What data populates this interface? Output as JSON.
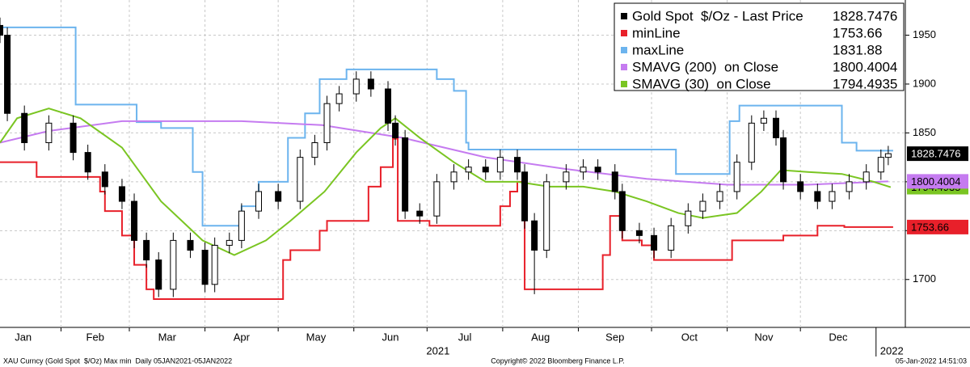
{
  "chart_data": {
    "type": "candlestick",
    "candles": {
      "name": "Gold Spot  $/Oz - Last Price",
      "color": "#000000",
      "x": [
        6,
        9,
        16,
        26,
        36,
        42,
        49,
        56,
        61,
        66,
        71,
        77,
        84,
        90,
        94,
        100,
        105,
        112,
        120,
        129,
        135,
        140,
        145,
        152,
        158,
        165,
        168,
        172,
        178,
        185,
        192,
        198,
        205,
        211,
        218,
        221,
        225,
        230,
        238,
        245,
        251,
        258,
        261,
        268,
        274,
        281,
        288,
        294,
        301,
        308,
        314,
        319,
        324,
        327,
        334,
        341,
        347,
        354,
        361,
        367,
        370
      ],
      "open": [
        1960,
        1950,
        1870,
        1840,
        1860,
        1830,
        1810,
        1795,
        1780,
        1740,
        1720,
        1690,
        1740,
        1730,
        1695,
        1735,
        1740,
        1770,
        1790,
        1780,
        1825,
        1840,
        1880,
        1890,
        1905,
        1895,
        1860,
        1845,
        1770,
        1765,
        1800,
        1810,
        1815,
        1810,
        1825,
        1810,
        1760,
        1730,
        1800,
        1810,
        1815,
        1810,
        1790,
        1750,
        1745,
        1730,
        1755,
        1770,
        1780,
        1790,
        1820,
        1860,
        1865,
        1845,
        1800,
        1790,
        1780,
        1790,
        1800,
        1810,
        1825
      ],
      "high": [
        1968,
        1958,
        1878,
        1868,
        1868,
        1838,
        1818,
        1803,
        1788,
        1748,
        1728,
        1748,
        1748,
        1738,
        1743,
        1748,
        1778,
        1798,
        1798,
        1833,
        1848,
        1888,
        1898,
        1913,
        1913,
        1903,
        1868,
        1853,
        1778,
        1808,
        1818,
        1823,
        1823,
        1833,
        1833,
        1818,
        1768,
        1808,
        1818,
        1823,
        1823,
        1818,
        1798,
        1758,
        1753,
        1763,
        1778,
        1788,
        1798,
        1828,
        1868,
        1873,
        1873,
        1853,
        1808,
        1798,
        1798,
        1808,
        1818,
        1833,
        1836.75
      ],
      "low": [
        1942,
        1862,
        1832,
        1832,
        1822,
        1802,
        1787,
        1772,
        1732,
        1712,
        1682,
        1682,
        1722,
        1687,
        1687,
        1727,
        1732,
        1762,
        1772,
        1772,
        1817,
        1832,
        1872,
        1882,
        1887,
        1852,
        1837,
        1762,
        1757,
        1757,
        1792,
        1802,
        1802,
        1802,
        1802,
        1752,
        1685,
        1722,
        1792,
        1802,
        1802,
        1782,
        1742,
        1737,
        1722,
        1722,
        1747,
        1762,
        1772,
        1782,
        1812,
        1852,
        1837,
        1792,
        1782,
        1772,
        1772,
        1782,
        1792,
        1802,
        1817
      ],
      "close": [
        1950,
        1870,
        1840,
        1860,
        1830,
        1810,
        1795,
        1780,
        1740,
        1720,
        1690,
        1740,
        1730,
        1695,
        1735,
        1740,
        1770,
        1790,
        1780,
        1825,
        1840,
        1880,
        1890,
        1905,
        1895,
        1860,
        1845,
        1770,
        1765,
        1800,
        1810,
        1815,
        1810,
        1825,
        1810,
        1760,
        1730,
        1800,
        1810,
        1815,
        1810,
        1790,
        1750,
        1745,
        1730,
        1755,
        1770,
        1780,
        1790,
        1820,
        1860,
        1865,
        1845,
        1800,
        1790,
        1780,
        1790,
        1800,
        1810,
        1825,
        1828.7476
      ]
    },
    "series": [
      {
        "name": "minLine",
        "color": "#e8202a",
        "style": "step",
        "x": [
          6,
          21,
          47,
          49,
          56,
          61,
          66,
          69,
          122,
          125,
          137,
          140,
          157,
          162,
          167,
          169,
          182,
          211,
          215,
          218,
          221,
          253,
          256,
          261,
          269,
          274,
          306,
          327,
          341,
          352,
          372
        ],
        "values": [
          1820,
          1805,
          1790,
          1770,
          1745,
          1715,
          1690,
          1680,
          1720,
          1730,
          1750,
          1760,
          1795,
          1815,
          1844,
          1760,
          1755,
          1775,
          1790,
          1800,
          1690,
          1725,
          1765,
          1740,
          1735,
          1720,
          1740,
          1745,
          1755,
          1753.66,
          1753.66
        ]
      },
      {
        "name": "maxLine",
        "color": "#6cb4ee",
        "style": "step",
        "x": [
          6,
          37,
          62,
          72,
          85,
          89,
          105,
          112,
          124,
          131,
          137,
          148,
          185,
          192,
          197,
          198,
          283,
          305,
          309,
          351,
          357,
          372
        ],
        "values": [
          1958,
          1879,
          1861,
          1855,
          1810,
          1755,
          1775,
          1800,
          1845,
          1870,
          1905,
          1915,
          1905,
          1893,
          1840,
          1833,
          1808,
          1862,
          1878,
          1840,
          1831.88,
          1831.88
        ]
      },
      {
        "name": "SMAVG (200)  on Close",
        "color": "#c57bf0",
        "style": "line",
        "x": [
          6,
          26,
          56,
          105,
          138,
          171,
          205,
          238,
          271,
          304,
          337,
          370
        ],
        "values": [
          1840,
          1852,
          1862,
          1862,
          1858,
          1845,
          1825,
          1813,
          1803,
          1797,
          1797,
          1800.4004
        ]
      },
      {
        "name": "SMAVG (30)  on Close",
        "color": "#7ac522",
        "style": "line",
        "x": [
          6,
          13,
          26,
          39,
          56,
          72,
          89,
          102,
          115,
          125,
          139,
          152,
          162,
          168,
          178,
          192,
          205,
          218,
          231,
          245,
          258,
          271,
          284,
          294,
          308,
          318,
          326,
          337,
          351,
          364,
          371
        ],
        "values": [
          1840,
          1865,
          1875,
          1865,
          1835,
          1780,
          1740,
          1725,
          1740,
          1760,
          1790,
          1830,
          1855,
          1865,
          1845,
          1820,
          1800,
          1800,
          1795,
          1795,
          1790,
          1780,
          1768,
          1763,
          1768,
          1790,
          1812,
          1810,
          1808,
          1800,
          1794.4935
        ]
      }
    ],
    "xlim": [
      6,
      377
    ],
    "xticks": [
      {
        "value": 0,
        "label": "Jan"
      },
      {
        "value": 31,
        "label": "Feb"
      },
      {
        "value": 59,
        "label": "Mar"
      },
      {
        "value": 90,
        "label": "Apr"
      },
      {
        "value": 120,
        "label": "May"
      },
      {
        "value": 151,
        "label": "Jun"
      },
      {
        "value": 181,
        "label": "Jul"
      },
      {
        "value": 212,
        "label": "Aug"
      },
      {
        "value": 243,
        "label": "Sep"
      },
      {
        "value": 273,
        "label": "Oct"
      },
      {
        "value": 304,
        "label": "Nov"
      },
      {
        "value": 334,
        "label": "Dec"
      }
    ],
    "years": [
      {
        "value": 0,
        "label": "2021"
      },
      {
        "value": 365,
        "label": "2022"
      }
    ],
    "ylim": [
      1651,
      1986
    ],
    "yticks": [
      1700,
      1750,
      1800,
      1850,
      1900,
      1950
    ],
    "grid": true,
    "footer": {
      "left": "XAU Curncy (Gold Spot  $/Oz) Max min  Daily 05JAN2021-05JAN2022",
      "center": "Copyright© 2022 Bloomberg Finance L.P.",
      "right": "05-Jan-2022 14:51:03"
    }
  }
}
